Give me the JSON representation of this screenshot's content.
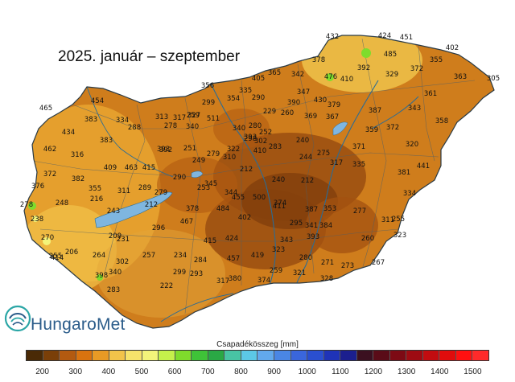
{
  "title": "2025. január – szeptember",
  "logo": {
    "text": "HungaroMet"
  },
  "legend": {
    "title": "Csapadékösszeg [mm]",
    "ticks": [
      "200",
      "300",
      "400",
      "500",
      "600",
      "700",
      "800",
      "900",
      "1000",
      "1100",
      "1200",
      "1300",
      "1400",
      "1500"
    ],
    "colors": [
      "#4a2a06",
      "#7a3f08",
      "#b35a10",
      "#d9730f",
      "#e89a25",
      "#f2c34a",
      "#f6e36b",
      "#f3f47a",
      "#c5f04b",
      "#7fdc2c",
      "#3fc238",
      "#2aa845",
      "#48c4a4",
      "#5cc8e6",
      "#62a9ec",
      "#4a86e4",
      "#3a66dc",
      "#2a4fd0",
      "#1f33b8",
      "#1b1f8e",
      "#3b1020",
      "#5a0c18",
      "#7d0a14",
      "#9e0b12",
      "#c20c10",
      "#e00c0c",
      "#ff1010",
      "#ff2a2a"
    ]
  },
  "colors": {
    "country_fill": "#cf7d1c",
    "dark_center": "#9a4d10",
    "darker_center": "#7d3c0c",
    "west_light": "#e9a530",
    "northeast_light": "#eec24a",
    "river": "#2a6c96",
    "lake": "#7fb6e0"
  },
  "stations": [
    [
      "432",
      0
    ],
    [
      "424",
      0
    ],
    [
      "451",
      0
    ],
    [
      "402",
      0
    ],
    [
      "378",
      0
    ],
    [
      "485",
      0
    ],
    [
      "355",
      0
    ],
    [
      "392",
      0
    ],
    [
      "329",
      0
    ],
    [
      "372",
      0
    ],
    [
      "363",
      0
    ],
    [
      "305",
      0
    ],
    [
      "454",
      0
    ],
    [
      "476",
      0
    ],
    [
      "410",
      0
    ],
    [
      "405",
      0
    ],
    [
      "354",
      0
    ],
    [
      "365",
      0
    ],
    [
      "342",
      0
    ],
    [
      "347",
      0
    ],
    [
      "335",
      0
    ],
    [
      "356",
      0
    ],
    [
      "290",
      0
    ],
    [
      "390",
      0
    ],
    [
      "430",
      0
    ],
    [
      "379",
      0
    ],
    [
      "361",
      0
    ],
    [
      "343",
      0
    ],
    [
      "299",
      0
    ],
    [
      "387",
      0
    ],
    [
      "367",
      0
    ],
    [
      "259",
      0
    ],
    [
      "280",
      0
    ],
    [
      "252",
      0
    ],
    [
      "229",
      0
    ],
    [
      "260",
      0
    ],
    [
      "359",
      0
    ],
    [
      "372",
      0
    ],
    [
      "358",
      0
    ],
    [
      "369",
      0
    ],
    [
      "465",
      0
    ],
    [
      "383",
      0
    ],
    [
      "334",
      0
    ],
    [
      "317",
      0
    ],
    [
      "313",
      0
    ],
    [
      "327",
      0
    ],
    [
      "288",
      0
    ],
    [
      "278",
      0
    ],
    [
      "340",
      0
    ],
    [
      "511",
      0
    ],
    [
      "434",
      0
    ],
    [
      "383",
      0
    ],
    [
      "340",
      0
    ],
    [
      "393",
      0
    ],
    [
      "251",
      0
    ],
    [
      "249",
      0
    ],
    [
      "279",
      0
    ],
    [
      "322",
      0
    ],
    [
      "298",
      0
    ],
    [
      "240",
      0
    ],
    [
      "275",
      0
    ],
    [
      "371",
      0
    ],
    [
      "320",
      0
    ],
    [
      "462",
      0
    ],
    [
      "316",
      0
    ],
    [
      "393",
      0
    ],
    [
      "302",
      0
    ],
    [
      "392",
      0
    ],
    [
      "410",
      0
    ],
    [
      "244",
      0
    ],
    [
      "310",
      0
    ],
    [
      "283",
      0
    ],
    [
      "372",
      0
    ],
    [
      "382",
      0
    ],
    [
      "409",
      0
    ],
    [
      "463",
      0
    ],
    [
      "415",
      0
    ],
    [
      "290",
      0
    ],
    [
      "345",
      0
    ],
    [
      "212",
      0
    ],
    [
      "240",
      0
    ],
    [
      "212",
      0
    ],
    [
      "317",
      0
    ],
    [
      "335",
      0
    ],
    [
      "381",
      0
    ],
    [
      "441",
      0
    ],
    [
      "376",
      0
    ],
    [
      "355",
      0
    ],
    [
      "311",
      0
    ],
    [
      "289",
      0
    ],
    [
      "279",
      0
    ],
    [
      "253",
      0
    ],
    [
      "344",
      0
    ],
    [
      "500",
      0
    ],
    [
      "411",
      0
    ],
    [
      "387",
      0
    ],
    [
      "334",
      0
    ],
    [
      "278",
      0
    ],
    [
      "248",
      0
    ],
    [
      "216",
      0
    ],
    [
      "243",
      0
    ],
    [
      "212",
      0
    ],
    [
      "455",
      0
    ],
    [
      "374",
      0
    ],
    [
      "353",
      0
    ],
    [
      "277",
      0
    ],
    [
      "255",
      0
    ],
    [
      "238",
      0
    ],
    [
      "378",
      0
    ],
    [
      "484",
      0
    ],
    [
      "402",
      0
    ],
    [
      "341",
      0
    ],
    [
      "295",
      0
    ],
    [
      "343",
      0
    ],
    [
      "311",
      0
    ],
    [
      "270",
      0
    ],
    [
      "231",
      0
    ],
    [
      "209",
      0
    ],
    [
      "296",
      0
    ],
    [
      "467",
      0
    ],
    [
      "415",
      0
    ],
    [
      "424",
      0
    ],
    [
      "393",
      0
    ],
    [
      "384",
      0
    ],
    [
      "260",
      0
    ],
    [
      "323",
      0
    ],
    [
      "255",
      0
    ],
    [
      "206",
      0
    ],
    [
      "264",
      0
    ],
    [
      "302",
      0
    ],
    [
      "257",
      0
    ],
    [
      "234",
      0
    ],
    [
      "284",
      0
    ],
    [
      "457",
      0
    ],
    [
      "419",
      0
    ],
    [
      "323",
      0
    ],
    [
      "280",
      0
    ],
    [
      "271",
      0
    ],
    [
      "273",
      0
    ],
    [
      "267",
      0
    ],
    [
      "414",
      0
    ],
    [
      "398",
      0
    ],
    [
      "340",
      0
    ],
    [
      "299",
      0
    ],
    [
      "293",
      0
    ],
    [
      "259",
      0
    ],
    [
      "321",
      0
    ],
    [
      "328",
      0
    ],
    [
      "283",
      0
    ],
    [
      "222",
      0
    ],
    [
      "317",
      0
    ],
    [
      "380",
      0
    ],
    [
      "374",
      0
    ]
  ]
}
